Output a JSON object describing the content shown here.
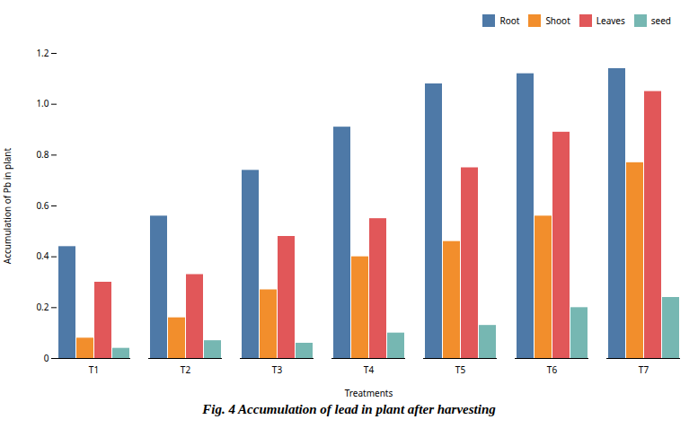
{
  "chart_data": {
    "type": "bar",
    "title": "Fig. 4 Accumulation of lead in plant after harvesting",
    "xlabel": "Treatments",
    "ylabel": "Accumulation of Pb in plant",
    "categories": [
      "T1",
      "T2",
      "T3",
      "T4",
      "T5",
      "T6",
      "T7"
    ],
    "series": [
      {
        "name": "Root",
        "values": [
          0.44,
          0.56,
          0.74,
          0.91,
          1.08,
          1.12,
          1.14
        ]
      },
      {
        "name": "Shoot",
        "values": [
          0.08,
          0.16,
          0.27,
          0.4,
          0.46,
          0.56,
          0.77
        ]
      },
      {
        "name": "Leaves",
        "values": [
          0.3,
          0.33,
          0.48,
          0.55,
          0.75,
          0.89,
          1.05
        ]
      },
      {
        "name": "seed",
        "values": [
          0.04,
          0.07,
          0.06,
          0.1,
          0.13,
          0.2,
          0.24
        ]
      }
    ],
    "ylim": [
      0,
      1.2
    ],
    "yticks": [
      0,
      0.2,
      0.4,
      0.6,
      0.8,
      {
        "value": 1.0,
        "label": "1.0"
      },
      1.2
    ],
    "grid": false,
    "legend": "upper right"
  }
}
